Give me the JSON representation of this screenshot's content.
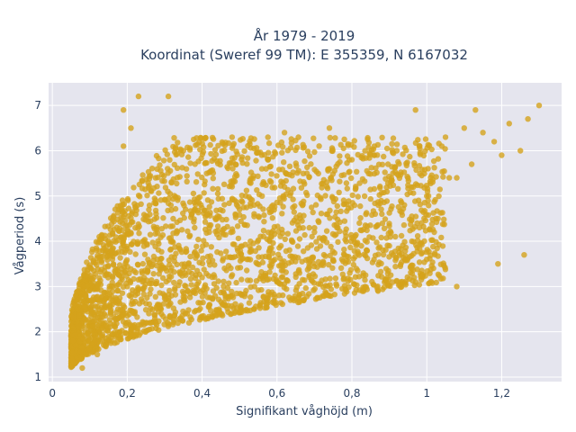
{
  "chart_data": {
    "type": "scatter",
    "title_line1": "År 1979 - 2019",
    "title_line2": "Koordinat (Sweref 99 TM): E 355359, N 6167032",
    "xlabel": "Signifikant våghöjd (m)",
    "ylabel": "Vågperiod (s)",
    "xlim": [
      -0.01,
      1.36
    ],
    "ylim": [
      0.9,
      7.5
    ],
    "x_ticks": [
      0,
      0.2,
      0.4,
      0.6,
      0.8,
      1,
      1.2
    ],
    "x_tick_labels": [
      "0",
      "0,2",
      "0,4",
      "0,6",
      "0,8",
      "1",
      "1,2"
    ],
    "y_ticks": [
      1,
      2,
      3,
      4,
      5,
      6,
      7
    ],
    "y_tick_labels": [
      "1",
      "2",
      "3",
      "4",
      "5",
      "6",
      "7"
    ],
    "grid": true,
    "marker_color": "#d4a21c",
    "plot_background": "#e5e5ee",
    "points": [
      [
        0.05,
        1.35
      ],
      [
        0.06,
        1.3
      ],
      [
        0.07,
        1.5
      ],
      [
        0.08,
        1.2
      ],
      [
        0.1,
        1.7
      ],
      [
        0.12,
        1.5
      ],
      [
        0.14,
        2.2
      ],
      [
        0.15,
        1.8
      ],
      [
        0.16,
        2.6
      ],
      [
        0.18,
        2.0
      ],
      [
        0.2,
        3.0
      ],
      [
        0.22,
        2.4
      ],
      [
        0.24,
        3.3
      ],
      [
        0.26,
        2.2
      ],
      [
        0.28,
        3.6
      ],
      [
        0.3,
        2.8
      ],
      [
        0.32,
        4.0
      ],
      [
        0.34,
        3.1
      ],
      [
        0.36,
        2.4
      ],
      [
        0.38,
        4.3
      ],
      [
        0.4,
        3.2
      ],
      [
        0.42,
        2.6
      ],
      [
        0.44,
        4.5
      ],
      [
        0.46,
        3.4
      ],
      [
        0.48,
        2.8
      ],
      [
        0.5,
        4.7
      ],
      [
        0.52,
        3.6
      ],
      [
        0.54,
        3.0
      ],
      [
        0.56,
        5.0
      ],
      [
        0.58,
        3.8
      ],
      [
        0.6,
        3.1
      ],
      [
        0.62,
        5.2
      ],
      [
        0.64,
        4.0
      ],
      [
        0.66,
        3.3
      ],
      [
        0.68,
        5.5
      ],
      [
        0.7,
        4.2
      ],
      [
        0.72,
        3.5
      ],
      [
        0.74,
        5.6
      ],
      [
        0.76,
        4.3
      ],
      [
        0.78,
        3.7
      ],
      [
        0.8,
        5.8
      ],
      [
        0.82,
        4.4
      ],
      [
        0.84,
        3.8
      ],
      [
        0.86,
        5.9
      ],
      [
        0.88,
        4.6
      ],
      [
        0.9,
        3.9
      ],
      [
        0.92,
        6.0
      ],
      [
        0.94,
        4.8
      ],
      [
        0.96,
        4.0
      ],
      [
        0.98,
        6.1
      ],
      [
        1.0,
        5.0
      ],
      [
        1.02,
        4.2
      ],
      [
        1.05,
        6.3
      ],
      [
        1.08,
        5.4
      ],
      [
        1.1,
        6.5
      ],
      [
        1.12,
        5.7
      ],
      [
        1.15,
        6.4
      ],
      [
        1.18,
        6.2
      ],
      [
        1.2,
        5.9
      ],
      [
        1.22,
        6.6
      ],
      [
        1.25,
        6.0
      ],
      [
        1.27,
        6.7
      ],
      [
        1.3,
        7.0
      ],
      [
        0.23,
        7.2
      ],
      [
        0.31,
        7.2
      ],
      [
        0.19,
        6.9
      ],
      [
        0.19,
        6.1
      ],
      [
        0.21,
        6.5
      ],
      [
        0.35,
        6.0
      ],
      [
        0.48,
        6.3
      ],
      [
        0.62,
        6.4
      ],
      [
        0.74,
        6.5
      ],
      [
        0.86,
        6.1
      ],
      [
        0.97,
        6.9
      ],
      [
        1.04,
        6.1
      ],
      [
        1.13,
        6.9
      ],
      [
        1.19,
        3.5
      ],
      [
        1.26,
        3.7
      ],
      [
        1.08,
        3.0
      ],
      [
        0.93,
        3.1
      ],
      [
        0.87,
        2.9
      ],
      [
        1.0,
        3.6
      ],
      [
        1.03,
        4.5
      ],
      [
        1.06,
        5.4
      ]
    ]
  }
}
